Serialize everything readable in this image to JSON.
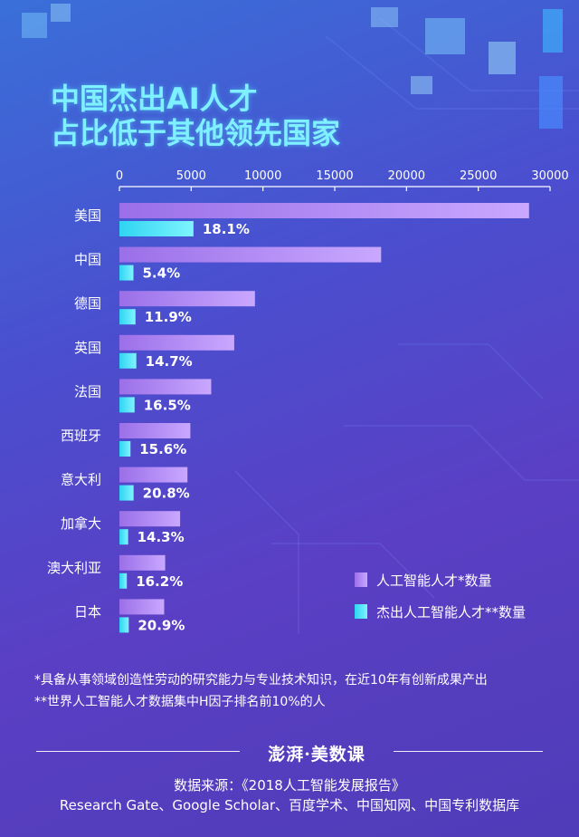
{
  "title": {
    "line1": "中国杰出AI人才",
    "line2": "占比低于其他领先国家"
  },
  "colors": {
    "talent_bar": "#a87ef0",
    "outstanding_bar": "#42e2f6",
    "title": "#7ff0ff"
  },
  "chart_data": {
    "type": "bar",
    "orientation": "horizontal",
    "axis_position": "top",
    "xlim": [
      0,
      30000
    ],
    "xticks": [
      "0",
      "5000",
      "10000",
      "15000",
      "20000",
      "25000",
      "30000"
    ],
    "categories": [
      "美国",
      "中国",
      "德国",
      "英国",
      "法国",
      "西班牙",
      "意大利",
      "加拿大",
      "澳大利亚",
      "日本"
    ],
    "series": [
      {
        "name": "人工智能人才*数量",
        "values": [
          28536,
          18232,
          9441,
          7998,
          6395,
          4942,
          4740,
          4228,
          3186,
          3117
        ]
      },
      {
        "name": "杰出人工智能人才**数量",
        "values": [
          5158,
          977,
          1119,
          1177,
          1056,
          771,
          986,
          606,
          517,
          651
        ],
        "labels": [
          "18.1%",
          "5.4%",
          "11.9%",
          "14.7%",
          "16.5%",
          "15.6%",
          "20.8%",
          "14.3%",
          "16.2%",
          "20.9%"
        ]
      }
    ],
    "legend_position": "bottom-right"
  },
  "footnotes": {
    "note1": "*具备从事领域创造性劳动的研究能力与专业技术知识，在近10年有创新成果产出",
    "note2": "**世界人工智能人才数据集中H因子排名前10%的人"
  },
  "brand": "澎湃·美数课",
  "source": {
    "line1": "数据来源：《2018人工智能发展报告》",
    "line2": "Research Gate、Google Scholar、百度学术、中国知网、中国专利数据库"
  }
}
